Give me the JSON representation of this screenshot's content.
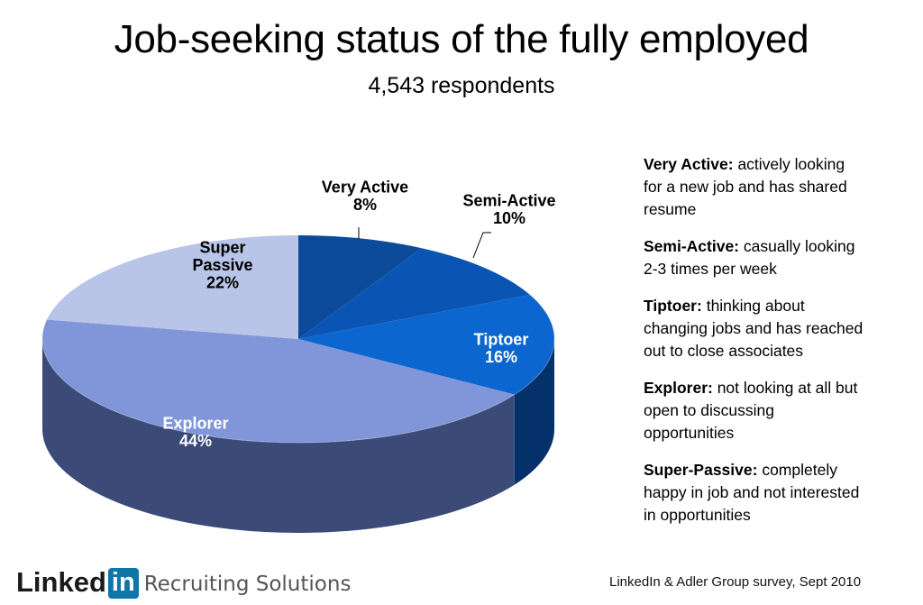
{
  "title": "Job-seeking status of the fully employed",
  "subtitle": "4,543 respondents",
  "chart_data": {
    "type": "pie",
    "title": "Job-seeking status of the fully employed",
    "subtitle": "4,543 respondents",
    "slices": [
      {
        "name": "Very Active",
        "value": 8,
        "label": "8%",
        "color": "#0c4a9a",
        "side_color": "#06264f",
        "label_color": "#000000",
        "label_lines": [
          "Very Active",
          "8%"
        ]
      },
      {
        "name": "Semi-Active",
        "value": 10,
        "label": "10%",
        "color": "#0a55b4",
        "side_color": "#062c5e",
        "label_color": "#000000",
        "label_lines": [
          "Semi-Active",
          "10%"
        ]
      },
      {
        "name": "Tiptoer",
        "value": 16,
        "label": "16%",
        "color": "#0b66cf",
        "side_color": "#05316a",
        "label_color": "#ffffff",
        "label_lines": [
          "Tiptoer",
          "16%"
        ]
      },
      {
        "name": "Explorer",
        "value": 44,
        "label": "44%",
        "color": "#8196d9",
        "side_color": "#3c4a78",
        "label_color": "#ffffff",
        "label_lines": [
          "Explorer",
          "44%"
        ]
      },
      {
        "name": "Super Passive",
        "value": 22,
        "label": "22%",
        "color": "#b8c4e8",
        "side_color": "#7f8bb8",
        "label_color": "#000000",
        "label_lines": [
          "Super",
          "Passive",
          "22%"
        ]
      }
    ],
    "start": "12 o'clock",
    "direction": "clockwise",
    "style": "3d"
  },
  "definitions": [
    {
      "term": "Very Active:",
      "lines": [
        "actively looking",
        "for a new job and has shared",
        "resume"
      ]
    },
    {
      "term": "Semi-Active:",
      "lines": [
        "casually looking",
        "2-3 times per week"
      ]
    },
    {
      "term": "Tiptoer:",
      "lines": [
        "thinking about",
        "changing jobs and has reached",
        "out to close associates"
      ]
    },
    {
      "term": "Explorer:",
      "lines": [
        "not looking at all but",
        "open to discussing",
        "opportunities"
      ]
    },
    {
      "term": "Super-Passive:",
      "lines": [
        "completely",
        "happy in job and not interested",
        "in opportunities"
      ]
    }
  ],
  "footer": {
    "logo_word": "Linked",
    "logo_box": "in",
    "logo_tagline": "Recruiting Solutions",
    "source": "LinkedIn & Adler Group survey, Sept 2010"
  }
}
